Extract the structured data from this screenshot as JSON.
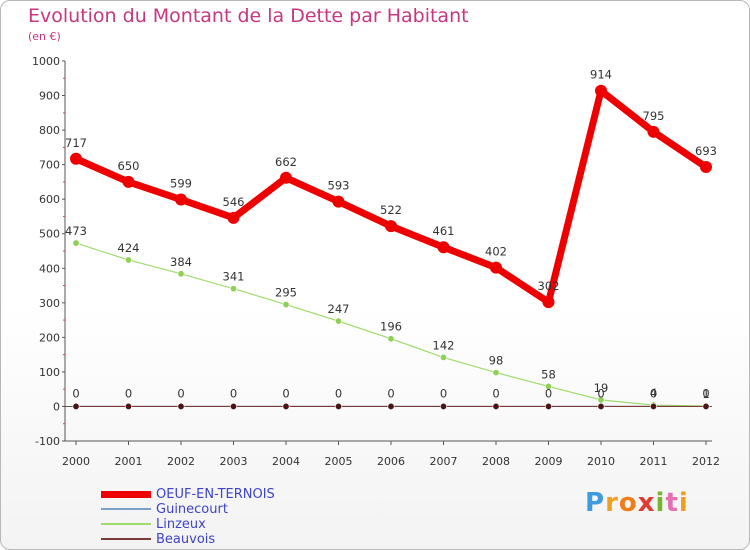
{
  "header": {
    "title": "Evolution du Montant de la Dette par Habitant",
    "unit": "(en €)"
  },
  "brand": {
    "text": "Proxiti",
    "letter_colors": [
      "#3e9be0",
      "#f0a021",
      "#f07d1a",
      "#e53a2e",
      "#77b52c",
      "#e56fb1",
      "#f0a021"
    ]
  },
  "chart_data": {
    "type": "line",
    "title": "Evolution du Montant de la Dette par Habitant",
    "subtitle": "(en €)",
    "xlabel": "",
    "ylabel": "",
    "x": [
      "2000",
      "2001",
      "2002",
      "2003",
      "2004",
      "2005",
      "2006",
      "2007",
      "2008",
      "2009",
      "2010",
      "2011",
      "2012"
    ],
    "ylim": [
      -100,
      1000
    ],
    "yticks": [
      "-100",
      "0",
      "100",
      "200",
      "300",
      "400",
      "500",
      "600",
      "700",
      "800",
      "900",
      "1000"
    ],
    "grid": false,
    "legend_position": "bottom-left",
    "series": [
      {
        "name": "OEUF-EN-TERNOIS",
        "color": "#ee0000",
        "marker_color": "#ee0000",
        "values": [
          717,
          650,
          599,
          546,
          662,
          593,
          522,
          461,
          402,
          302,
          914,
          795,
          693
        ],
        "labels": [
          "717",
          "650",
          "599",
          "546",
          "662",
          "593",
          "522",
          "461",
          "402",
          "302",
          "914",
          "795",
          "693"
        ]
      },
      {
        "name": "Guinecourt",
        "color": "#7aa2c9",
        "marker_color": "#7aa2c9",
        "values": [
          0,
          0,
          0,
          0,
          0,
          0,
          0,
          0,
          0,
          0,
          0,
          0,
          0
        ],
        "labels": []
      },
      {
        "name": "Linzeux",
        "color": "#9fdc6c",
        "marker_color": "#8fd156",
        "values": [
          473,
          424,
          384,
          341,
          295,
          247,
          196,
          142,
          98,
          58,
          19,
          4,
          1
        ],
        "labels": [
          "473",
          "424",
          "384",
          "341",
          "295",
          "247",
          "196",
          "142",
          "98",
          "58",
          "19",
          "4",
          "1"
        ]
      },
      {
        "name": "Beauvois",
        "color": "#7a3b3b",
        "marker_color": "#4a1414",
        "values": [
          0,
          0,
          0,
          0,
          0,
          0,
          0,
          0,
          0,
          0,
          0,
          0,
          0
        ],
        "labels": [
          "0",
          "0",
          "0",
          "0",
          "0",
          "0",
          "0",
          "0",
          "0",
          "0",
          "0",
          "0",
          "0"
        ]
      }
    ]
  }
}
